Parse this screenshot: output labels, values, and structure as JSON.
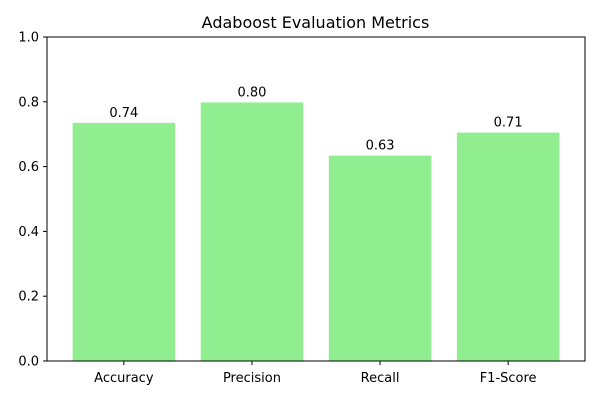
{
  "chart_data": {
    "type": "bar",
    "title": "Adaboost Evaluation Metrics",
    "xlabel": "",
    "ylabel": "",
    "categories": [
      "Accuracy",
      "Precision",
      "Recall",
      "F1-Score"
    ],
    "values": [
      0.735,
      0.798,
      0.634,
      0.705
    ],
    "value_labels": [
      "0.74",
      "0.80",
      "0.63",
      "0.71"
    ],
    "ylim": [
      0,
      1
    ],
    "yticks": [
      0.0,
      0.2,
      0.4,
      0.6,
      0.8,
      1.0
    ],
    "ytick_labels": [
      "0.0",
      "0.2",
      "0.4",
      "0.6",
      "0.8",
      "1.0"
    ],
    "grid": false,
    "bar_color": "#90ee90"
  }
}
